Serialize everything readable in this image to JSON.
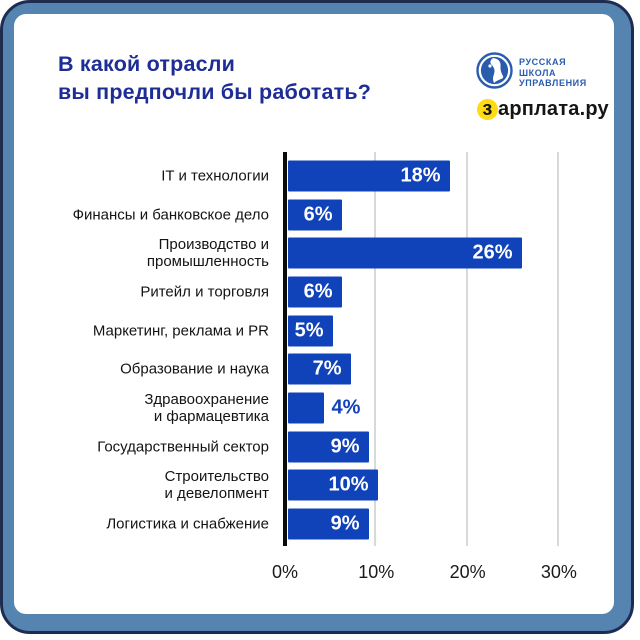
{
  "card": {
    "title_lines": [
      "В какой отрасли",
      "вы предпочли бы работать?"
    ]
  },
  "logos": {
    "rsu": {
      "lines": [
        "РУССКАЯ",
        "ШКОЛА",
        "УПРАВЛЕНИЯ"
      ],
      "color": "#2a5cae"
    },
    "zarplata": {
      "first_letter": "з",
      "rest": "арплата.ру",
      "circle_color": "#ffdb14"
    }
  },
  "colors": {
    "frame": "#5584b0",
    "frame_border": "#1e2c52",
    "card": "#ffffff",
    "title": "#1e2d96",
    "bar": "#1042ba",
    "gridline": "#d9d9d9",
    "axis": "#0b0b0b",
    "label_text": "#141414"
  },
  "chart_data": {
    "type": "bar",
    "orientation": "horizontal",
    "title": "В какой отрасли вы предпочли бы работать?",
    "categories": [
      "IT и технологии",
      "Финансы и банковское дело",
      "Производство и промышленность",
      "Ритейл и торговля",
      "Маркетинг, реклама и PR",
      "Образование и наука",
      "Здравоохранение и фармацевтика",
      "Государственный сектор",
      "Строительство и девелопмент",
      "Логистика и снабжение"
    ],
    "label_lines": [
      [
        "IT и технологии"
      ],
      [
        "Финансы и банковское дело"
      ],
      [
        "Производство и",
        "промышленность"
      ],
      [
        "Ритейл и торговля"
      ],
      [
        "Маркетинг, реклама и PR"
      ],
      [
        "Образование и наука"
      ],
      [
        "Здравоохранение",
        "и фармацевтика"
      ],
      [
        "Государственный сектор"
      ],
      [
        "Строительство",
        "и девелопмент"
      ],
      [
        "Логистика и снабжение"
      ]
    ],
    "values": [
      18,
      6,
      26,
      6,
      5,
      7,
      4,
      9,
      10,
      9
    ],
    "value_labels": [
      "18%",
      "6%",
      "26%",
      "6%",
      "5%",
      "7%",
      "4%",
      "9%",
      "10%",
      "9%"
    ],
    "x_ticks": [
      "0%",
      "10%",
      "20%",
      "30%"
    ],
    "xlim": [
      0,
      33
    ],
    "grid": true,
    "legend": false,
    "bar_color": "#1042ba",
    "xlabel": "",
    "ylabel": ""
  }
}
